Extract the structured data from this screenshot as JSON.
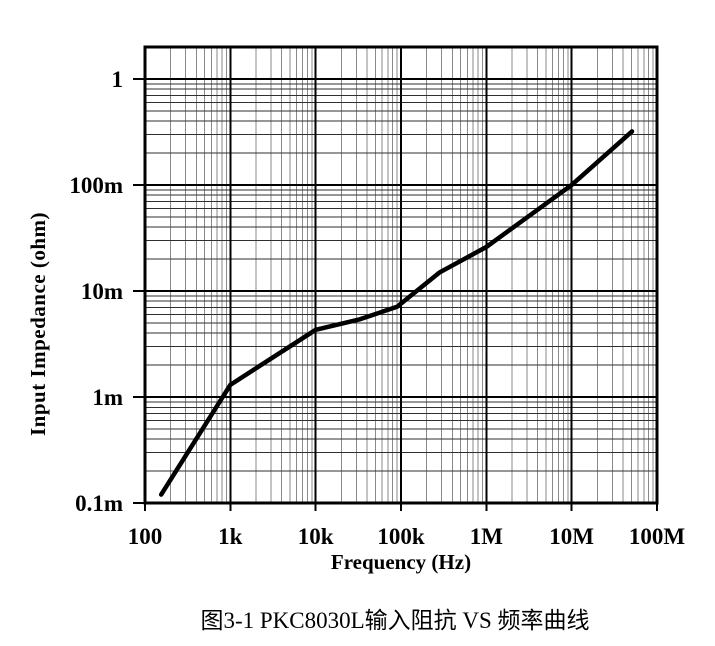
{
  "caption": "图3-1 PKC8030L输入阻抗 VS 频率曲线",
  "colors": {
    "background": "#ffffff",
    "curve": "#000000",
    "major_grid": "#000000",
    "minor_grid_vertical": "#8a8a8a",
    "minor_grid_horizontal": "#2f2f2f",
    "text": "#000000"
  },
  "chart_data": {
    "type": "line",
    "title": "",
    "xlabel": "Frequency (Hz)",
    "ylabel": "Input Impedance (ohm)",
    "x_scale": "log",
    "y_scale": "log",
    "xlim": [
      100,
      100000000
    ],
    "ylim": [
      0.0001,
      2
    ],
    "grid": {
      "major": true,
      "minor": true
    },
    "legend": false,
    "x_ticks": [
      {
        "value": 100,
        "label": "100"
      },
      {
        "value": 1000,
        "label": "1k"
      },
      {
        "value": 10000,
        "label": "10k"
      },
      {
        "value": 100000,
        "label": "100k"
      },
      {
        "value": 1000000,
        "label": "1M"
      },
      {
        "value": 10000000,
        "label": "10M"
      },
      {
        "value": 100000000,
        "label": "100M"
      }
    ],
    "y_ticks": [
      {
        "value": 1,
        "label": "1"
      },
      {
        "value": 0.1,
        "label": "100m"
      },
      {
        "value": 0.01,
        "label": "10m"
      },
      {
        "value": 0.001,
        "label": "1m"
      },
      {
        "value": 0.0001,
        "label": "0.1m"
      }
    ],
    "series": [
      {
        "name": "PKC8030L input impedance",
        "points_unit": [
          "Hz",
          "ohm"
        ],
        "points": [
          [
            155,
            0.00012
          ],
          [
            1000,
            0.0013
          ],
          [
            10000,
            0.0043
          ],
          [
            33000,
            0.0054
          ],
          [
            90000,
            0.0071
          ],
          [
            285000,
            0.015
          ],
          [
            1000000,
            0.026
          ],
          [
            10000000,
            0.1
          ],
          [
            51000000,
            0.32
          ]
        ]
      }
    ]
  }
}
